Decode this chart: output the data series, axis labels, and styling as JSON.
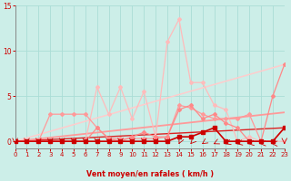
{
  "xlabel": "Vent moyen/en rafales ( km/h )",
  "xlim": [
    0,
    23
  ],
  "ylim": [
    -0.8,
    15
  ],
  "yticks": [
    0,
    5,
    10,
    15
  ],
  "xticks": [
    0,
    1,
    2,
    3,
    4,
    5,
    6,
    7,
    8,
    9,
    10,
    11,
    12,
    13,
    14,
    15,
    16,
    17,
    18,
    19,
    20,
    21,
    22,
    23
  ],
  "bg_color": "#cceee8",
  "grid_color": "#aaddd6",
  "text_color": "#cc0000",
  "series": [
    {
      "name": "light_pink_line",
      "x": [
        0,
        1,
        2,
        3,
        4,
        5,
        6,
        7,
        8,
        9,
        10,
        11,
        12,
        13,
        14,
        15,
        16,
        17,
        18,
        19,
        20,
        21,
        22,
        23
      ],
      "y": [
        0,
        0,
        0,
        0,
        0,
        0,
        0,
        6.0,
        3.0,
        6.0,
        2.5,
        5.5,
        0.5,
        11.0,
        13.5,
        6.5,
        6.5,
        4.0,
        3.5,
        0,
        0.5,
        0,
        0,
        0
      ],
      "color": "#ffbbbb",
      "lw": 0.9,
      "marker": "D",
      "ms": 2.0,
      "zorder": 3
    },
    {
      "name": "medium_pink_line",
      "x": [
        0,
        1,
        2,
        3,
        4,
        5,
        6,
        7,
        8,
        9,
        10,
        11,
        12,
        13,
        14,
        15,
        16,
        17,
        18,
        19,
        20,
        21,
        22,
        23
      ],
      "y": [
        0,
        0,
        0,
        3.0,
        3.0,
        3.0,
        3.0,
        1.5,
        0.3,
        0.3,
        0.3,
        0.3,
        0.3,
        0.5,
        4.0,
        3.7,
        3.0,
        2.5,
        2.5,
        2.5,
        3.0,
        0,
        0,
        1.5
      ],
      "color": "#ff9999",
      "lw": 0.9,
      "marker": "D",
      "ms": 2.0,
      "zorder": 3
    },
    {
      "name": "salmon_line",
      "x": [
        0,
        1,
        2,
        3,
        4,
        5,
        6,
        7,
        8,
        9,
        10,
        11,
        12,
        13,
        14,
        15,
        16,
        17,
        18,
        19,
        20,
        21,
        22,
        23
      ],
      "y": [
        0,
        0,
        0,
        0,
        0,
        0,
        0,
        1.5,
        0.3,
        0,
        0.5,
        1.0,
        0.5,
        0.5,
        3.5,
        4.0,
        2.5,
        3.0,
        2.0,
        1.5,
        0,
        0,
        5.0,
        8.5
      ],
      "color": "#ff8888",
      "lw": 0.9,
      "marker": "D",
      "ms": 2.0,
      "zorder": 3
    },
    {
      "name": "dark_red_line",
      "x": [
        0,
        1,
        2,
        3,
        4,
        5,
        6,
        7,
        8,
        9,
        10,
        11,
        12,
        13,
        14,
        15,
        16,
        17,
        18,
        19,
        20,
        21,
        22,
        23
      ],
      "y": [
        0,
        0,
        0,
        0,
        0,
        0,
        0,
        0,
        0,
        0,
        0,
        0,
        0,
        0,
        0.5,
        0.5,
        1.0,
        1.5,
        0,
        0,
        0,
        0,
        0,
        1.5
      ],
      "color": "#cc0000",
      "lw": 1.2,
      "marker": "s",
      "ms": 2.2,
      "zorder": 4
    },
    {
      "name": "trend_darkred",
      "x": [
        0,
        23
      ],
      "y": [
        0,
        1.5
      ],
      "color": "#dd2222",
      "lw": 1.0,
      "marker": null,
      "ms": 0,
      "zorder": 2
    },
    {
      "name": "trend_medium",
      "x": [
        0,
        23
      ],
      "y": [
        0,
        3.2
      ],
      "color": "#ff9999",
      "lw": 1.3,
      "marker": null,
      "ms": 0,
      "zorder": 2
    },
    {
      "name": "trend_light",
      "x": [
        0,
        23
      ],
      "y": [
        0,
        8.5
      ],
      "color": "#ffcccc",
      "lw": 1.1,
      "marker": null,
      "ms": 0,
      "zorder": 2
    }
  ],
  "wind_arrows_x": [
    0,
    1,
    2,
    3,
    4,
    5,
    6,
    7,
    8,
    9,
    10,
    11,
    12,
    13,
    14,
    15,
    16,
    17,
    18,
    19,
    20,
    21,
    22,
    23
  ],
  "wind_arrow_color": "#cc0000",
  "wind_angles_deg": [
    0,
    0,
    0,
    0,
    0,
    0,
    0,
    0,
    0,
    0,
    0,
    0,
    0,
    0,
    -10,
    -20,
    -30,
    -40,
    -50,
    -60,
    -70,
    -80,
    -90,
    0
  ]
}
